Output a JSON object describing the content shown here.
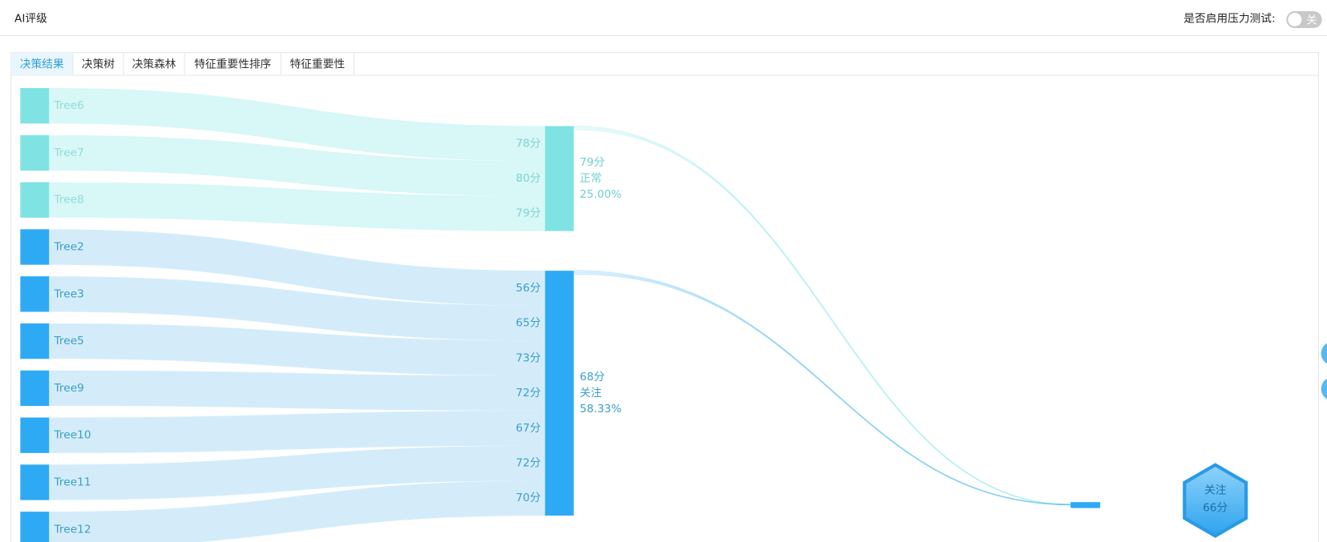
{
  "header": {
    "title": "AI评级",
    "toggle_label": "是否启用压力测试:",
    "toggle_state": "关"
  },
  "tabs": [
    "决策结果",
    "决策树",
    "决策森林",
    "特征重要性排序",
    "特征重要性"
  ],
  "sankey": {
    "groups": [
      {
        "score": "79分",
        "level": "正常",
        "share": "25.00%",
        "color": "#7fe3e3",
        "trees": [
          {
            "name": "Tree6",
            "score": "78分"
          },
          {
            "name": "Tree7",
            "score": "80分"
          },
          {
            "name": "Tree8",
            "score": "79分"
          }
        ]
      },
      {
        "score": "68分",
        "level": "关注",
        "share": "58.33%",
        "color": "#2eaaf5",
        "trees": [
          {
            "name": "Tree2",
            "score": "56分"
          },
          {
            "name": "Tree3",
            "score": "65分"
          },
          {
            "name": "Tree5",
            "score": "73分"
          },
          {
            "name": "Tree9",
            "score": "72分"
          },
          {
            "name": "Tree10",
            "score": "67分"
          },
          {
            "name": "Tree11",
            "score": "72分"
          },
          {
            "name": "Tree12",
            "score": "70分"
          }
        ]
      }
    ],
    "result": {
      "level": "关注",
      "score": "66分"
    }
  }
}
